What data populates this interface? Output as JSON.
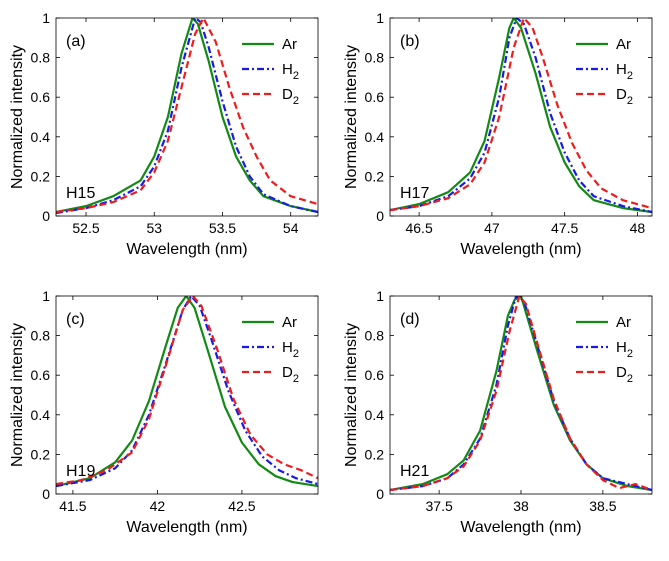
{
  "colors": {
    "Ar": "#138a13",
    "H2": "#1a1ae6",
    "D2": "#ee1c1c",
    "axis": "#000000"
  },
  "chart_data": [
    {
      "type": "line",
      "panel_label": "(a)",
      "harmonic_label": "H15",
      "xlabel": "Wavelength (nm)",
      "ylabel": "Normalized intensity",
      "xlim": [
        52.28,
        54.2
      ],
      "ylim": [
        0,
        1
      ],
      "xticks": [
        52.5,
        53,
        53.5,
        54
      ],
      "xtick_labels": [
        "52.5",
        "53",
        "53.5",
        "54"
      ],
      "yticks": [
        0,
        0.2,
        0.4,
        0.6,
        0.8,
        1
      ],
      "ytick_labels": [
        "0",
        "0.2",
        "0.4",
        "0.6",
        "0.8",
        "1"
      ],
      "legend_position": "top-right",
      "series": [
        {
          "name": "Ar",
          "sub": "",
          "color_key": "Ar",
          "style": "solid",
          "x": [
            52.28,
            52.5,
            52.7,
            52.9,
            53.0,
            53.1,
            53.2,
            53.28,
            53.32,
            53.4,
            53.5,
            53.6,
            53.7,
            53.8,
            54.0,
            54.2
          ],
          "y": [
            0.02,
            0.05,
            0.1,
            0.18,
            0.3,
            0.5,
            0.82,
            1.0,
            0.97,
            0.78,
            0.5,
            0.3,
            0.18,
            0.1,
            0.05,
            0.02
          ]
        },
        {
          "name": "H",
          "sub": "2",
          "color_key": "H2",
          "style": "dashdot",
          "x": [
            52.28,
            52.5,
            52.7,
            52.9,
            53.0,
            53.1,
            53.2,
            53.3,
            53.34,
            53.4,
            53.5,
            53.6,
            53.7,
            53.8,
            54.0,
            54.2
          ],
          "y": [
            0.015,
            0.04,
            0.08,
            0.15,
            0.25,
            0.43,
            0.75,
            1.0,
            0.98,
            0.85,
            0.58,
            0.35,
            0.2,
            0.11,
            0.05,
            0.02
          ]
        },
        {
          "name": "D",
          "sub": "2",
          "color_key": "D2",
          "style": "dashed",
          "x": [
            52.28,
            52.5,
            52.7,
            52.9,
            53.0,
            53.1,
            53.2,
            53.3,
            53.36,
            53.45,
            53.55,
            53.65,
            53.75,
            53.85,
            54.0,
            54.2
          ],
          "y": [
            0.02,
            0.04,
            0.07,
            0.13,
            0.22,
            0.38,
            0.65,
            0.92,
            1.0,
            0.88,
            0.65,
            0.45,
            0.3,
            0.18,
            0.1,
            0.06
          ]
        }
      ]
    },
    {
      "type": "line",
      "panel_label": "(b)",
      "harmonic_label": "H17",
      "xlabel": "Wavelength (nm)",
      "ylabel": "Normalized intensity",
      "xlim": [
        46.3,
        48.1
      ],
      "ylim": [
        0,
        1
      ],
      "xticks": [
        46.5,
        47,
        47.5,
        48
      ],
      "xtick_labels": [
        "46.5",
        "47",
        "47.5",
        "48"
      ],
      "yticks": [
        0,
        0.2,
        0.4,
        0.6,
        0.8,
        1
      ],
      "ytick_labels": [
        "0",
        "0.2",
        "0.4",
        "0.6",
        "0.8",
        "1"
      ],
      "legend_position": "top-right",
      "series": [
        {
          "name": "Ar",
          "sub": "",
          "color_key": "Ar",
          "style": "solid",
          "x": [
            46.3,
            46.5,
            46.7,
            46.85,
            46.95,
            47.05,
            47.12,
            47.15,
            47.2,
            47.3,
            47.4,
            47.5,
            47.6,
            47.7,
            47.9,
            48.1
          ],
          "y": [
            0.03,
            0.06,
            0.12,
            0.22,
            0.38,
            0.7,
            0.95,
            1.0,
            0.95,
            0.72,
            0.45,
            0.27,
            0.15,
            0.08,
            0.04,
            0.02
          ]
        },
        {
          "name": "H",
          "sub": "2",
          "color_key": "H2",
          "style": "dashdot",
          "x": [
            46.3,
            46.5,
            46.7,
            46.85,
            46.95,
            47.05,
            47.12,
            47.17,
            47.22,
            47.3,
            47.4,
            47.5,
            47.6,
            47.7,
            47.9,
            48.1
          ],
          "y": [
            0.03,
            0.05,
            0.1,
            0.19,
            0.32,
            0.6,
            0.9,
            1.0,
            0.97,
            0.8,
            0.52,
            0.32,
            0.18,
            0.1,
            0.05,
            0.02
          ]
        },
        {
          "name": "D",
          "sub": "2",
          "color_key": "D2",
          "style": "dashed",
          "x": [
            46.3,
            46.5,
            46.7,
            46.85,
            46.95,
            47.05,
            47.15,
            47.22,
            47.28,
            47.35,
            47.45,
            47.55,
            47.65,
            47.75,
            47.9,
            48.1
          ],
          "y": [
            0.03,
            0.05,
            0.09,
            0.16,
            0.27,
            0.5,
            0.85,
            1.0,
            0.95,
            0.8,
            0.56,
            0.37,
            0.23,
            0.14,
            0.08,
            0.04
          ]
        }
      ]
    },
    {
      "type": "line",
      "panel_label": "(c)",
      "harmonic_label": "H19",
      "xlabel": "Wavelength (nm)",
      "ylabel": "Normalized intensity",
      "xlim": [
        41.4,
        42.95
      ],
      "ylim": [
        0,
        1
      ],
      "xticks": [
        41.5,
        42,
        42.5
      ],
      "xtick_labels": [
        "41.5",
        "42",
        "42.5"
      ],
      "yticks": [
        0,
        0.2,
        0.4,
        0.6,
        0.8,
        1
      ],
      "ytick_labels": [
        "0",
        "0.2",
        "0.4",
        "0.6",
        "0.8",
        "1"
      ],
      "legend_position": "top-right",
      "series": [
        {
          "name": "Ar",
          "sub": "",
          "color_key": "Ar",
          "style": "solid",
          "x": [
            41.4,
            41.6,
            41.75,
            41.85,
            41.95,
            42.05,
            42.12,
            42.17,
            42.22,
            42.3,
            42.4,
            42.5,
            42.6,
            42.7,
            42.8,
            42.95
          ],
          "y": [
            0.04,
            0.08,
            0.16,
            0.27,
            0.47,
            0.75,
            0.94,
            1.0,
            0.94,
            0.72,
            0.44,
            0.26,
            0.15,
            0.09,
            0.06,
            0.04
          ]
        },
        {
          "name": "H",
          "sub": "2",
          "color_key": "H2",
          "style": "dashdot",
          "x": [
            41.4,
            41.6,
            41.75,
            41.85,
            41.95,
            42.05,
            42.15,
            42.2,
            42.25,
            42.32,
            42.42,
            42.52,
            42.62,
            42.72,
            42.82,
            42.95
          ],
          "y": [
            0.04,
            0.07,
            0.13,
            0.22,
            0.4,
            0.66,
            0.93,
            1.0,
            0.95,
            0.78,
            0.52,
            0.32,
            0.19,
            0.12,
            0.08,
            0.05
          ]
        },
        {
          "name": "D",
          "sub": "2",
          "color_key": "D2",
          "style": "dashed",
          "x": [
            41.4,
            41.55,
            41.7,
            41.85,
            41.95,
            42.05,
            42.15,
            42.21,
            42.26,
            42.35,
            42.45,
            42.55,
            42.65,
            42.75,
            42.85,
            42.95
          ],
          "y": [
            0.05,
            0.07,
            0.12,
            0.21,
            0.38,
            0.65,
            0.93,
            1.0,
            0.95,
            0.74,
            0.48,
            0.3,
            0.2,
            0.15,
            0.12,
            0.08
          ]
        }
      ]
    },
    {
      "type": "line",
      "panel_label": "(d)",
      "harmonic_label": "H21",
      "xlabel": "Wavelength (nm)",
      "ylabel": "Normalized intensity",
      "xlim": [
        37.2,
        38.8
      ],
      "ylim": [
        0,
        1
      ],
      "xticks": [
        37.5,
        38,
        38.5
      ],
      "xtick_labels": [
        "37.5",
        "38",
        "38.5"
      ],
      "yticks": [
        0,
        0.2,
        0.4,
        0.6,
        0.8,
        1
      ],
      "ytick_labels": [
        "0",
        "0.2",
        "0.4",
        "0.6",
        "0.8",
        "1"
      ],
      "legend_position": "top-right",
      "series": [
        {
          "name": "Ar",
          "sub": "",
          "color_key": "Ar",
          "style": "solid",
          "x": [
            37.2,
            37.4,
            37.55,
            37.65,
            37.75,
            37.85,
            37.92,
            37.96,
            38.0,
            38.1,
            38.2,
            38.3,
            38.4,
            38.5,
            38.65,
            38.8
          ],
          "y": [
            0.02,
            0.05,
            0.1,
            0.17,
            0.32,
            0.62,
            0.9,
            0.98,
            1.0,
            0.72,
            0.45,
            0.27,
            0.15,
            0.08,
            0.04,
            0.02
          ]
        },
        {
          "name": "H",
          "sub": "2",
          "color_key": "H2",
          "style": "dashdot",
          "x": [
            37.2,
            37.4,
            37.55,
            37.65,
            37.75,
            37.85,
            37.92,
            37.97,
            38.02,
            38.1,
            38.2,
            38.3,
            38.4,
            38.5,
            38.65,
            38.8
          ],
          "y": [
            0.02,
            0.04,
            0.08,
            0.15,
            0.28,
            0.55,
            0.85,
            1.0,
            0.97,
            0.75,
            0.47,
            0.28,
            0.15,
            0.08,
            0.05,
            0.02
          ]
        },
        {
          "name": "D",
          "sub": "2",
          "color_key": "D2",
          "style": "dashed",
          "x": [
            37.2,
            37.4,
            37.55,
            37.65,
            37.75,
            37.85,
            37.93,
            37.99,
            38.03,
            38.1,
            38.2,
            38.3,
            38.4,
            38.5,
            38.6,
            38.7,
            38.8
          ],
          "y": [
            0.02,
            0.04,
            0.08,
            0.14,
            0.27,
            0.52,
            0.82,
            1.0,
            0.96,
            0.76,
            0.48,
            0.28,
            0.15,
            0.07,
            0.03,
            0.05,
            0.02
          ]
        }
      ]
    }
  ]
}
